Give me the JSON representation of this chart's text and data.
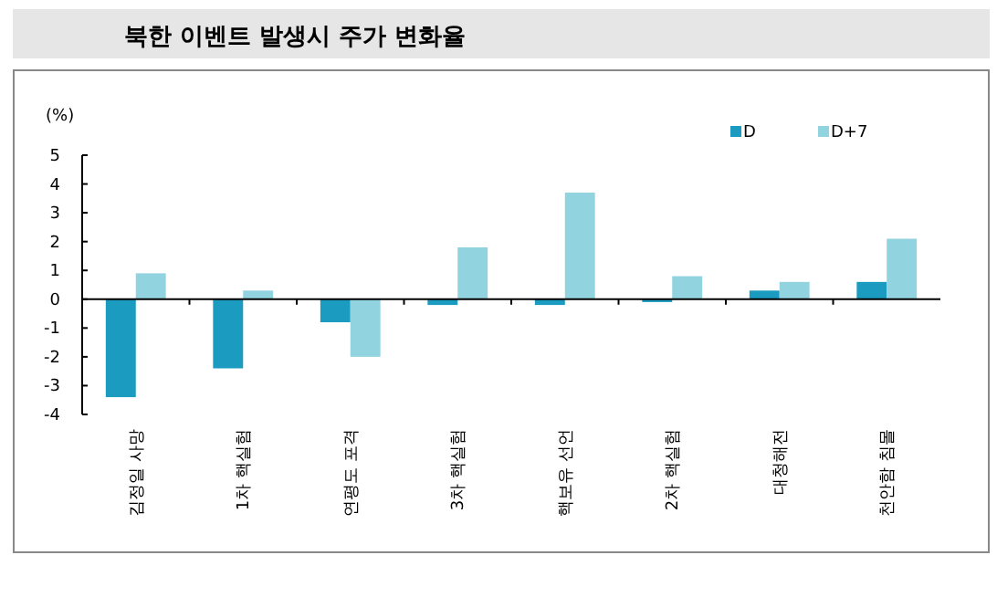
{
  "chart_data": {
    "type": "bar",
    "title": "북한 이벤트 발생시 주가 변화율",
    "ylabel": "(%)",
    "categories": [
      "김정일 사망",
      "1차 핵실험",
      "연평도 포격",
      "3차 핵실험",
      "핵보유 선언",
      "2차 핵실험",
      "대청해전",
      "천안함 침몰"
    ],
    "series": [
      {
        "name": "D",
        "color": "#1a9bbf",
        "values": [
          -3.4,
          -2.4,
          -0.8,
          -0.2,
          -0.2,
          -0.1,
          0.3,
          0.6
        ]
      },
      {
        "name": "D+7",
        "color": "#92d3e0",
        "values": [
          0.9,
          0.3,
          -2.0,
          1.8,
          3.7,
          0.8,
          0.6,
          2.1
        ]
      }
    ],
    "ylim": [
      -4,
      5
    ],
    "yticks": [
      -4,
      -3,
      -2,
      -1,
      0,
      1,
      2,
      3,
      4,
      5
    ],
    "legend": "top right"
  }
}
